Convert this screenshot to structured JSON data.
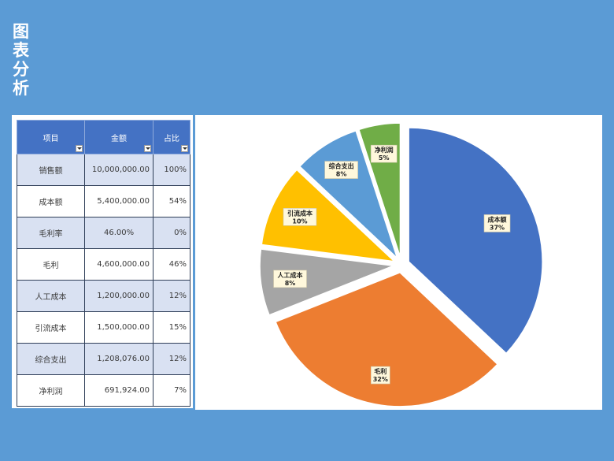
{
  "page": {
    "title": "图表分析"
  },
  "table": {
    "headers": [
      "项目",
      "金额",
      "占比"
    ],
    "rows": [
      {
        "item": "销售额",
        "amount": "10,000,000.00",
        "ratio": "100%"
      },
      {
        "item": "成本额",
        "amount": "5,400,000.00",
        "ratio": "54%"
      },
      {
        "item": "毛利率",
        "amount": "46.00%",
        "ratio": "0%"
      },
      {
        "item": "毛利",
        "amount": "4,600,000.00",
        "ratio": "46%"
      },
      {
        "item": "人工成本",
        "amount": "1,200,000.00",
        "ratio": "12%"
      },
      {
        "item": "引流成本",
        "amount": "1,500,000.00",
        "ratio": "15%"
      },
      {
        "item": "综合支出",
        "amount": "1,208,076.00",
        "ratio": "12%"
      },
      {
        "item": "净利润",
        "amount": "691,924.00",
        "ratio": "7%"
      }
    ]
  },
  "chart_data": {
    "type": "pie",
    "exploded": true,
    "labels": [
      "成本额",
      "毛利",
      "人工成本",
      "引流成本",
      "综合支出",
      "净利润"
    ],
    "values": [
      37,
      32,
      8,
      10,
      8,
      5
    ],
    "value_labels": [
      "37%",
      "32%",
      "8%",
      "10%",
      "8%",
      "5%"
    ],
    "colors": [
      "#4472c4",
      "#ed7d31",
      "#a5a5a5",
      "#ffc000",
      "#5b9bd5",
      "#70ad47"
    ]
  }
}
